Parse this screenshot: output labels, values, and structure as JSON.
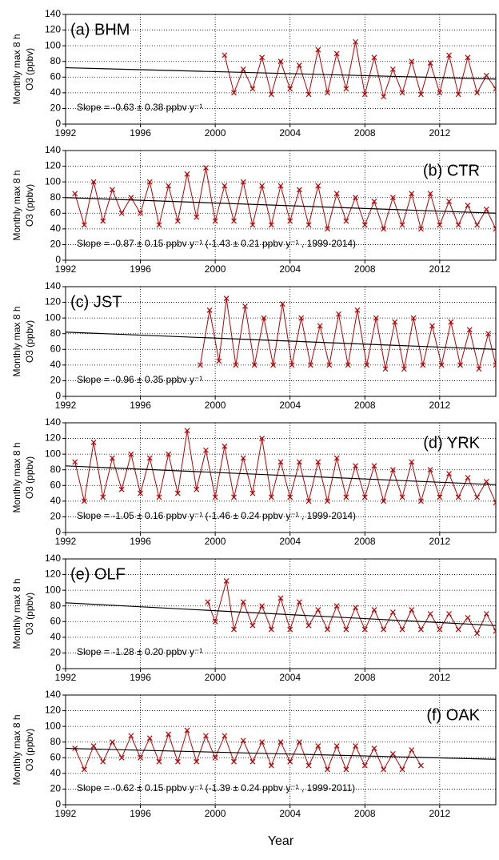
{
  "chart_data": [
    {
      "type": "line",
      "label": "(a) BHM",
      "label_corner": "upper left",
      "annotation": "Slope = -0.63 ± 0.38 ppbv y⁻¹",
      "ylabel": [
        "Monthly  max  8 h",
        "O3 (ppbv)"
      ],
      "xlim": [
        1992,
        2015
      ],
      "xticks": [
        1992,
        1996,
        2000,
        2004,
        2008,
        2012
      ],
      "ylim": [
        0,
        140
      ],
      "yticks": [
        0,
        20,
        40,
        60,
        80,
        100,
        120,
        140
      ],
      "grid": true,
      "series": [
        {
          "color": "#c00000",
          "marker": "x",
          "x": [
            2000.5,
            2001,
            2001.5,
            2002,
            2002.5,
            2003,
            2003.5,
            2004,
            2004.5,
            2005,
            2005.5,
            2006,
            2006.5,
            2007,
            2007.5,
            2008,
            2008.5,
            2009,
            2009.5,
            2010,
            2010.5,
            2011,
            2011.5,
            2012,
            2012.5,
            2013,
            2013.5,
            2014,
            2014.5,
            2015
          ],
          "values": [
            88,
            40,
            70,
            45,
            85,
            38,
            80,
            45,
            75,
            38,
            95,
            40,
            90,
            45,
            105,
            38,
            85,
            35,
            70,
            40,
            80,
            38,
            78,
            40,
            88,
            38,
            85,
            40,
            62,
            45
          ]
        },
        {
          "color": "#000000",
          "x": [
            1992,
            2015
          ],
          "values": [
            72,
            57.5
          ]
        }
      ]
    },
    {
      "type": "line",
      "label": "(b) CTR",
      "label_corner": "upper right",
      "annotation": "Slope = -0.87 ± 0.15 ppbv y⁻¹ (-1.43 ± 0.21 ppbv y⁻¹ , 1999-2014)",
      "ylabel": [
        "Monthly  max  8 h",
        "O3 (ppbv)"
      ],
      "xlim": [
        1992,
        2015
      ],
      "xticks": [
        1992,
        1996,
        2000,
        2004,
        2008,
        2012
      ],
      "ylim": [
        0,
        140
      ],
      "yticks": [
        0,
        20,
        40,
        60,
        80,
        100,
        120,
        140
      ],
      "grid": true,
      "series": [
        {
          "color": "#c00000",
          "marker": "x",
          "x": [
            1992.5,
            1993,
            1993.5,
            1994,
            1994.5,
            1995,
            1995.5,
            1996,
            1996.5,
            1997,
            1997.5,
            1998,
            1998.5,
            1999,
            1999.5,
            2000,
            2000.5,
            2001,
            2001.5,
            2002,
            2002.5,
            2003,
            2003.5,
            2004,
            2004.5,
            2005,
            2005.5,
            2006,
            2006.5,
            2007,
            2007.5,
            2008,
            2008.5,
            2009,
            2009.5,
            2010,
            2010.5,
            2011,
            2011.5,
            2012,
            2012.5,
            2013,
            2013.5,
            2014,
            2014.5,
            2015
          ],
          "values": [
            85,
            45,
            100,
            50,
            90,
            60,
            80,
            60,
            100,
            45,
            95,
            50,
            110,
            55,
            118,
            50,
            95,
            50,
            100,
            45,
            95,
            45,
            95,
            50,
            90,
            45,
            95,
            40,
            85,
            50,
            80,
            45,
            75,
            40,
            80,
            45,
            85,
            40,
            85,
            45,
            75,
            45,
            70,
            45,
            65,
            40
          ]
        },
        {
          "color": "#000000",
          "x": [
            1992,
            2015
          ],
          "values": [
            80,
            60
          ]
        }
      ]
    },
    {
      "type": "line",
      "label": "(c) JST",
      "label_corner": "upper left",
      "annotation": "Slope = -0.96 ± 0.35 ppbv y⁻¹",
      "ylabel": [
        "Monthly  max  8 h",
        "O3 (ppbv)"
      ],
      "xlim": [
        1992,
        2015
      ],
      "xticks": [
        1992,
        1996,
        2000,
        2004,
        2008,
        2012
      ],
      "ylim": [
        0,
        140
      ],
      "yticks": [
        0,
        20,
        40,
        60,
        80,
        100,
        120,
        140
      ],
      "grid": true,
      "series": [
        {
          "color": "#c00000",
          "marker": "x",
          "x": [
            1999.2,
            1999.7,
            2000.2,
            2000.6,
            2001.1,
            2001.6,
            2002.1,
            2002.6,
            2003.1,
            2003.6,
            2004.1,
            2004.6,
            2005.1,
            2005.6,
            2006.1,
            2006.6,
            2007.1,
            2007.6,
            2008.1,
            2008.6,
            2009.1,
            2009.6,
            2010.1,
            2010.6,
            2011.1,
            2011.6,
            2012.1,
            2012.6,
            2013.1,
            2013.6,
            2014.1,
            2014.6,
            2015
          ],
          "values": [
            40,
            110,
            45,
            125,
            40,
            115,
            40,
            100,
            40,
            118,
            40,
            100,
            40,
            90,
            40,
            105,
            40,
            110,
            40,
            100,
            35,
            95,
            35,
            100,
            40,
            90,
            40,
            95,
            40,
            85,
            35,
            80,
            40
          ]
        },
        {
          "color": "#000000",
          "x": [
            1992,
            2015
          ],
          "values": [
            82,
            60
          ]
        }
      ]
    },
    {
      "type": "line",
      "label": "(d) YRK",
      "label_corner": "upper right",
      "annotation": "Slope = -1.05 ± 0.16 ppbv y⁻¹ (-1.46 ± 0.24 ppbv y⁻¹ , 1999-2014)",
      "ylabel": [
        "Monthly  max  8 h",
        "O3 (ppbv)"
      ],
      "xlim": [
        1992,
        2015
      ],
      "xticks": [
        1992,
        1996,
        2000,
        2004,
        2008,
        2012
      ],
      "ylim": [
        0,
        140
      ],
      "yticks": [
        0,
        20,
        40,
        60,
        80,
        100,
        120,
        140
      ],
      "grid": true,
      "series": [
        {
          "color": "#c00000",
          "marker": "x",
          "x": [
            1992.5,
            1993,
            1993.5,
            1994,
            1994.5,
            1995,
            1995.5,
            1996,
            1996.5,
            1997,
            1997.5,
            1998,
            1998.5,
            1999,
            1999.5,
            2000,
            2000.5,
            2001,
            2001.5,
            2002,
            2002.5,
            2003,
            2003.5,
            2004,
            2004.5,
            2005,
            2005.5,
            2006,
            2006.5,
            2007,
            2007.5,
            2008,
            2008.5,
            2009,
            2009.5,
            2010,
            2010.5,
            2011,
            2011.5,
            2012,
            2012.5,
            2013,
            2013.5,
            2014,
            2014.5,
            2015
          ],
          "values": [
            90,
            40,
            115,
            45,
            95,
            55,
            100,
            50,
            95,
            45,
            100,
            50,
            130,
            55,
            105,
            45,
            110,
            45,
            95,
            50,
            120,
            45,
            90,
            45,
            90,
            40,
            90,
            40,
            95,
            45,
            85,
            45,
            85,
            40,
            80,
            45,
            90,
            40,
            80,
            45,
            75,
            45,
            70,
            45,
            65,
            38
          ]
        },
        {
          "color": "#000000",
          "x": [
            1992,
            2015
          ],
          "values": [
            85,
            61
          ]
        }
      ]
    },
    {
      "type": "line",
      "label": "(e) OLF",
      "label_corner": "upper left",
      "annotation": "Slope = -1.28 ± 0.20 ppbv y⁻¹",
      "ylabel": [
        "Monthly  max  8 h",
        "O3 (ppbv)"
      ],
      "xlim": [
        1992,
        2015
      ],
      "xticks": [
        1992,
        1996,
        2000,
        2004,
        2008,
        2012
      ],
      "ylim": [
        0,
        140
      ],
      "yticks": [
        0,
        20,
        40,
        60,
        80,
        100,
        120,
        140
      ],
      "grid": true,
      "series": [
        {
          "color": "#c00000",
          "marker": "x",
          "x": [
            1999.6,
            2000,
            2000.6,
            2001,
            2001.5,
            2002,
            2002.5,
            2003,
            2003.5,
            2004,
            2004.5,
            2005,
            2005.5,
            2006,
            2006.5,
            2007,
            2007.5,
            2008,
            2008.5,
            2009,
            2009.5,
            2010,
            2010.5,
            2011,
            2011.5,
            2012,
            2012.5,
            2013,
            2013.5,
            2014,
            2014.5,
            2015
          ],
          "values": [
            85,
            60,
            112,
            50,
            85,
            55,
            80,
            50,
            90,
            50,
            85,
            55,
            75,
            50,
            80,
            50,
            78,
            50,
            75,
            50,
            72,
            50,
            75,
            50,
            70,
            50,
            70,
            50,
            65,
            45,
            70,
            48
          ]
        },
        {
          "color": "#000000",
          "x": [
            1992,
            2015
          ],
          "values": [
            84,
            55
          ]
        }
      ]
    },
    {
      "type": "line",
      "label": "(f) OAK",
      "label_corner": "upper right",
      "annotation": "Slope = -0.62 ± 0.15 ppbv y⁻¹ (-1.39 ± 0.24 ppbv y⁻¹ , 1999-2011)",
      "ylabel": [
        "Monthly  max  8 h",
        "O3 (ppbv)"
      ],
      "xlabel": "Year",
      "xlim": [
        1992,
        2015
      ],
      "xticks": [
        1992,
        1996,
        2000,
        2004,
        2008,
        2012
      ],
      "ylim": [
        0,
        140
      ],
      "yticks": [
        0,
        20,
        40,
        60,
        80,
        100,
        120,
        140
      ],
      "grid": true,
      "series": [
        {
          "color": "#c00000",
          "marker": "x",
          "x": [
            1992.5,
            1993,
            1993.5,
            1994,
            1994.5,
            1995,
            1995.5,
            1996,
            1996.5,
            1997,
            1997.5,
            1998,
            1998.5,
            1999,
            1999.5,
            2000,
            2000.5,
            2001,
            2001.5,
            2002,
            2002.5,
            2003,
            2003.5,
            2004,
            2004.5,
            2005,
            2005.5,
            2006,
            2006.5,
            2007,
            2007.5,
            2008,
            2008.5,
            2009,
            2009.5,
            2010,
            2010.5,
            2011
          ],
          "values": [
            72,
            45,
            75,
            55,
            80,
            60,
            88,
            60,
            85,
            55,
            90,
            55,
            95,
            55,
            88,
            60,
            88,
            55,
            82,
            55,
            80,
            50,
            80,
            55,
            80,
            50,
            75,
            45,
            75,
            45,
            75,
            50,
            72,
            45,
            65,
            45,
            70,
            50
          ]
        },
        {
          "color": "#000000",
          "x": [
            1992,
            2015
          ],
          "values": [
            72,
            58
          ]
        }
      ]
    }
  ]
}
